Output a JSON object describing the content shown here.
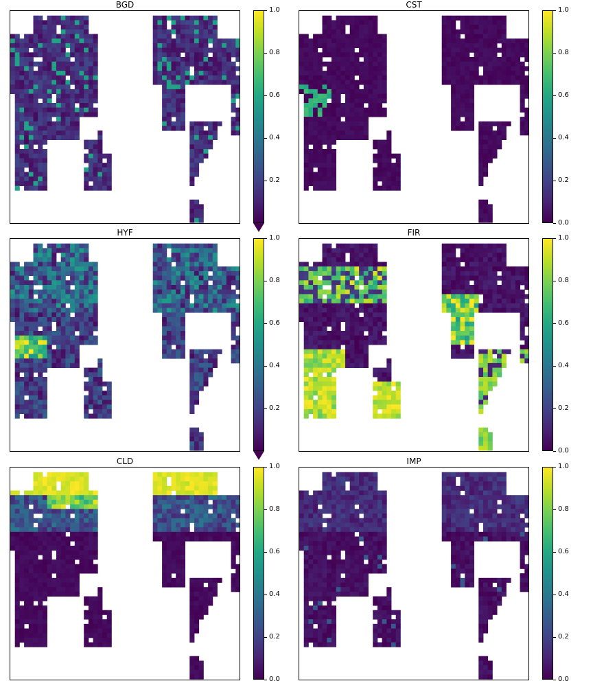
{
  "chart_data": [
    {
      "type": "heatmap",
      "title": "BGD",
      "colormap": "viridis",
      "colorbar_range": [
        0.0,
        1.0
      ],
      "colorbar_ticks": [
        "0.2",
        "0.4",
        "0.6",
        "0.8",
        "1.0"
      ],
      "colorbar_extend": "min",
      "description_values": {
        "land_typical": 0.1,
        "high_spots": 0.5
      },
      "pattern": "bgd"
    },
    {
      "type": "heatmap",
      "title": "CST",
      "colormap": "viridis",
      "colorbar_range": [
        0.0,
        1.0
      ],
      "colorbar_ticks": [
        "0.0",
        "0.2",
        "0.4",
        "0.6",
        "0.8",
        "1.0"
      ],
      "colorbar_extend": "none",
      "description_values": {
        "land_typical": 0.02,
        "high_spots": 0.5
      },
      "pattern": "cst"
    },
    {
      "type": "heatmap",
      "title": "HYF",
      "colormap": "viridis",
      "colorbar_range": [
        0.0,
        1.0
      ],
      "colorbar_ticks": [
        "0.2",
        "0.4",
        "0.6",
        "0.8",
        "1.0"
      ],
      "colorbar_extend": "min",
      "description_values": {
        "land_typical": 0.2,
        "high_spots": 0.9
      },
      "pattern": "hyf"
    },
    {
      "type": "heatmap",
      "title": "FIR",
      "colormap": "viridis",
      "colorbar_range": [
        0.0,
        1.0
      ],
      "colorbar_ticks": [
        "0.0",
        "0.2",
        "0.4",
        "0.6",
        "0.8",
        "1.0"
      ],
      "colorbar_extend": "none",
      "description_values": {
        "land_typical": 0.05,
        "high_spots": 1.0
      },
      "pattern": "fir"
    },
    {
      "type": "heatmap",
      "title": "CLD",
      "colormap": "viridis",
      "colorbar_range": [
        0.0,
        1.0
      ],
      "colorbar_ticks": [
        "0.0",
        "0.2",
        "0.4",
        "0.6",
        "0.8",
        "1.0"
      ],
      "colorbar_extend": "none",
      "description_values": {
        "land_typical": 0.02,
        "high_spots": 1.0
      },
      "pattern": "cld"
    },
    {
      "type": "heatmap",
      "title": "IMP",
      "colormap": "viridis",
      "colorbar_range": [
        0.0,
        1.0
      ],
      "colorbar_ticks": [
        "0.0",
        "0.2",
        "0.4",
        "0.6",
        "0.8",
        "1.0"
      ],
      "colorbar_extend": "none",
      "description_values": {
        "land_typical": 0.03,
        "high_spots": 0.3
      },
      "pattern": "imp"
    }
  ]
}
